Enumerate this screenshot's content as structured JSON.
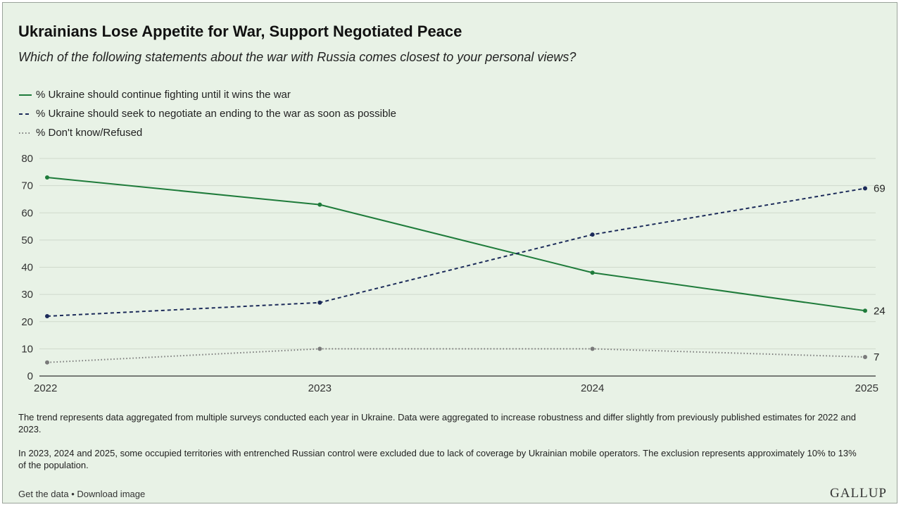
{
  "header": {
    "title": "Ukrainians Lose Appetite for War, Support Negotiated Peace",
    "subtitle": "Which of the following statements about the war with Russia comes closest to your personal views?"
  },
  "chart_data": {
    "type": "line",
    "x": [
      "2022",
      "2023",
      "2024",
      "2025"
    ],
    "series": [
      {
        "name": "% Ukraine should continue fighting until it wins the war",
        "values": [
          73,
          63,
          38,
          24
        ],
        "color": "#1e7b3a",
        "dash": "solid",
        "end_label": "24"
      },
      {
        "name": "% Ukraine should seek to negotiate an ending to the war as soon as possible",
        "values": [
          22,
          27,
          52,
          69
        ],
        "color": "#1c2b5a",
        "dash": "dashed",
        "end_label": "69"
      },
      {
        "name": "% Don't know/Refused",
        "values": [
          5,
          10,
          10,
          7
        ],
        "color": "#7a7a7a",
        "dash": "dotted",
        "end_label": "7"
      }
    ],
    "ylim": [
      0,
      80
    ],
    "yticks": [
      "0",
      "10",
      "20",
      "30",
      "40",
      "50",
      "60",
      "70",
      "80"
    ],
    "grid": true,
    "legend_position": "top-left"
  },
  "notes": [
    "The trend represents data aggregated from multiple surveys conducted each year in Ukraine. Data were aggregated to increase robustness and differ slightly from previously published estimates for 2022 and 2023.",
    "In 2023, 2024 and 2025, some occupied territories with entrenched Russian control were excluded due to lack of coverage by Ukrainian mobile operators. The exclusion represents approximately 10% to 13% of the population."
  ],
  "footer": {
    "get_data": "Get the data",
    "separator": "•",
    "download": "Download image",
    "brand": "GALLUP"
  }
}
